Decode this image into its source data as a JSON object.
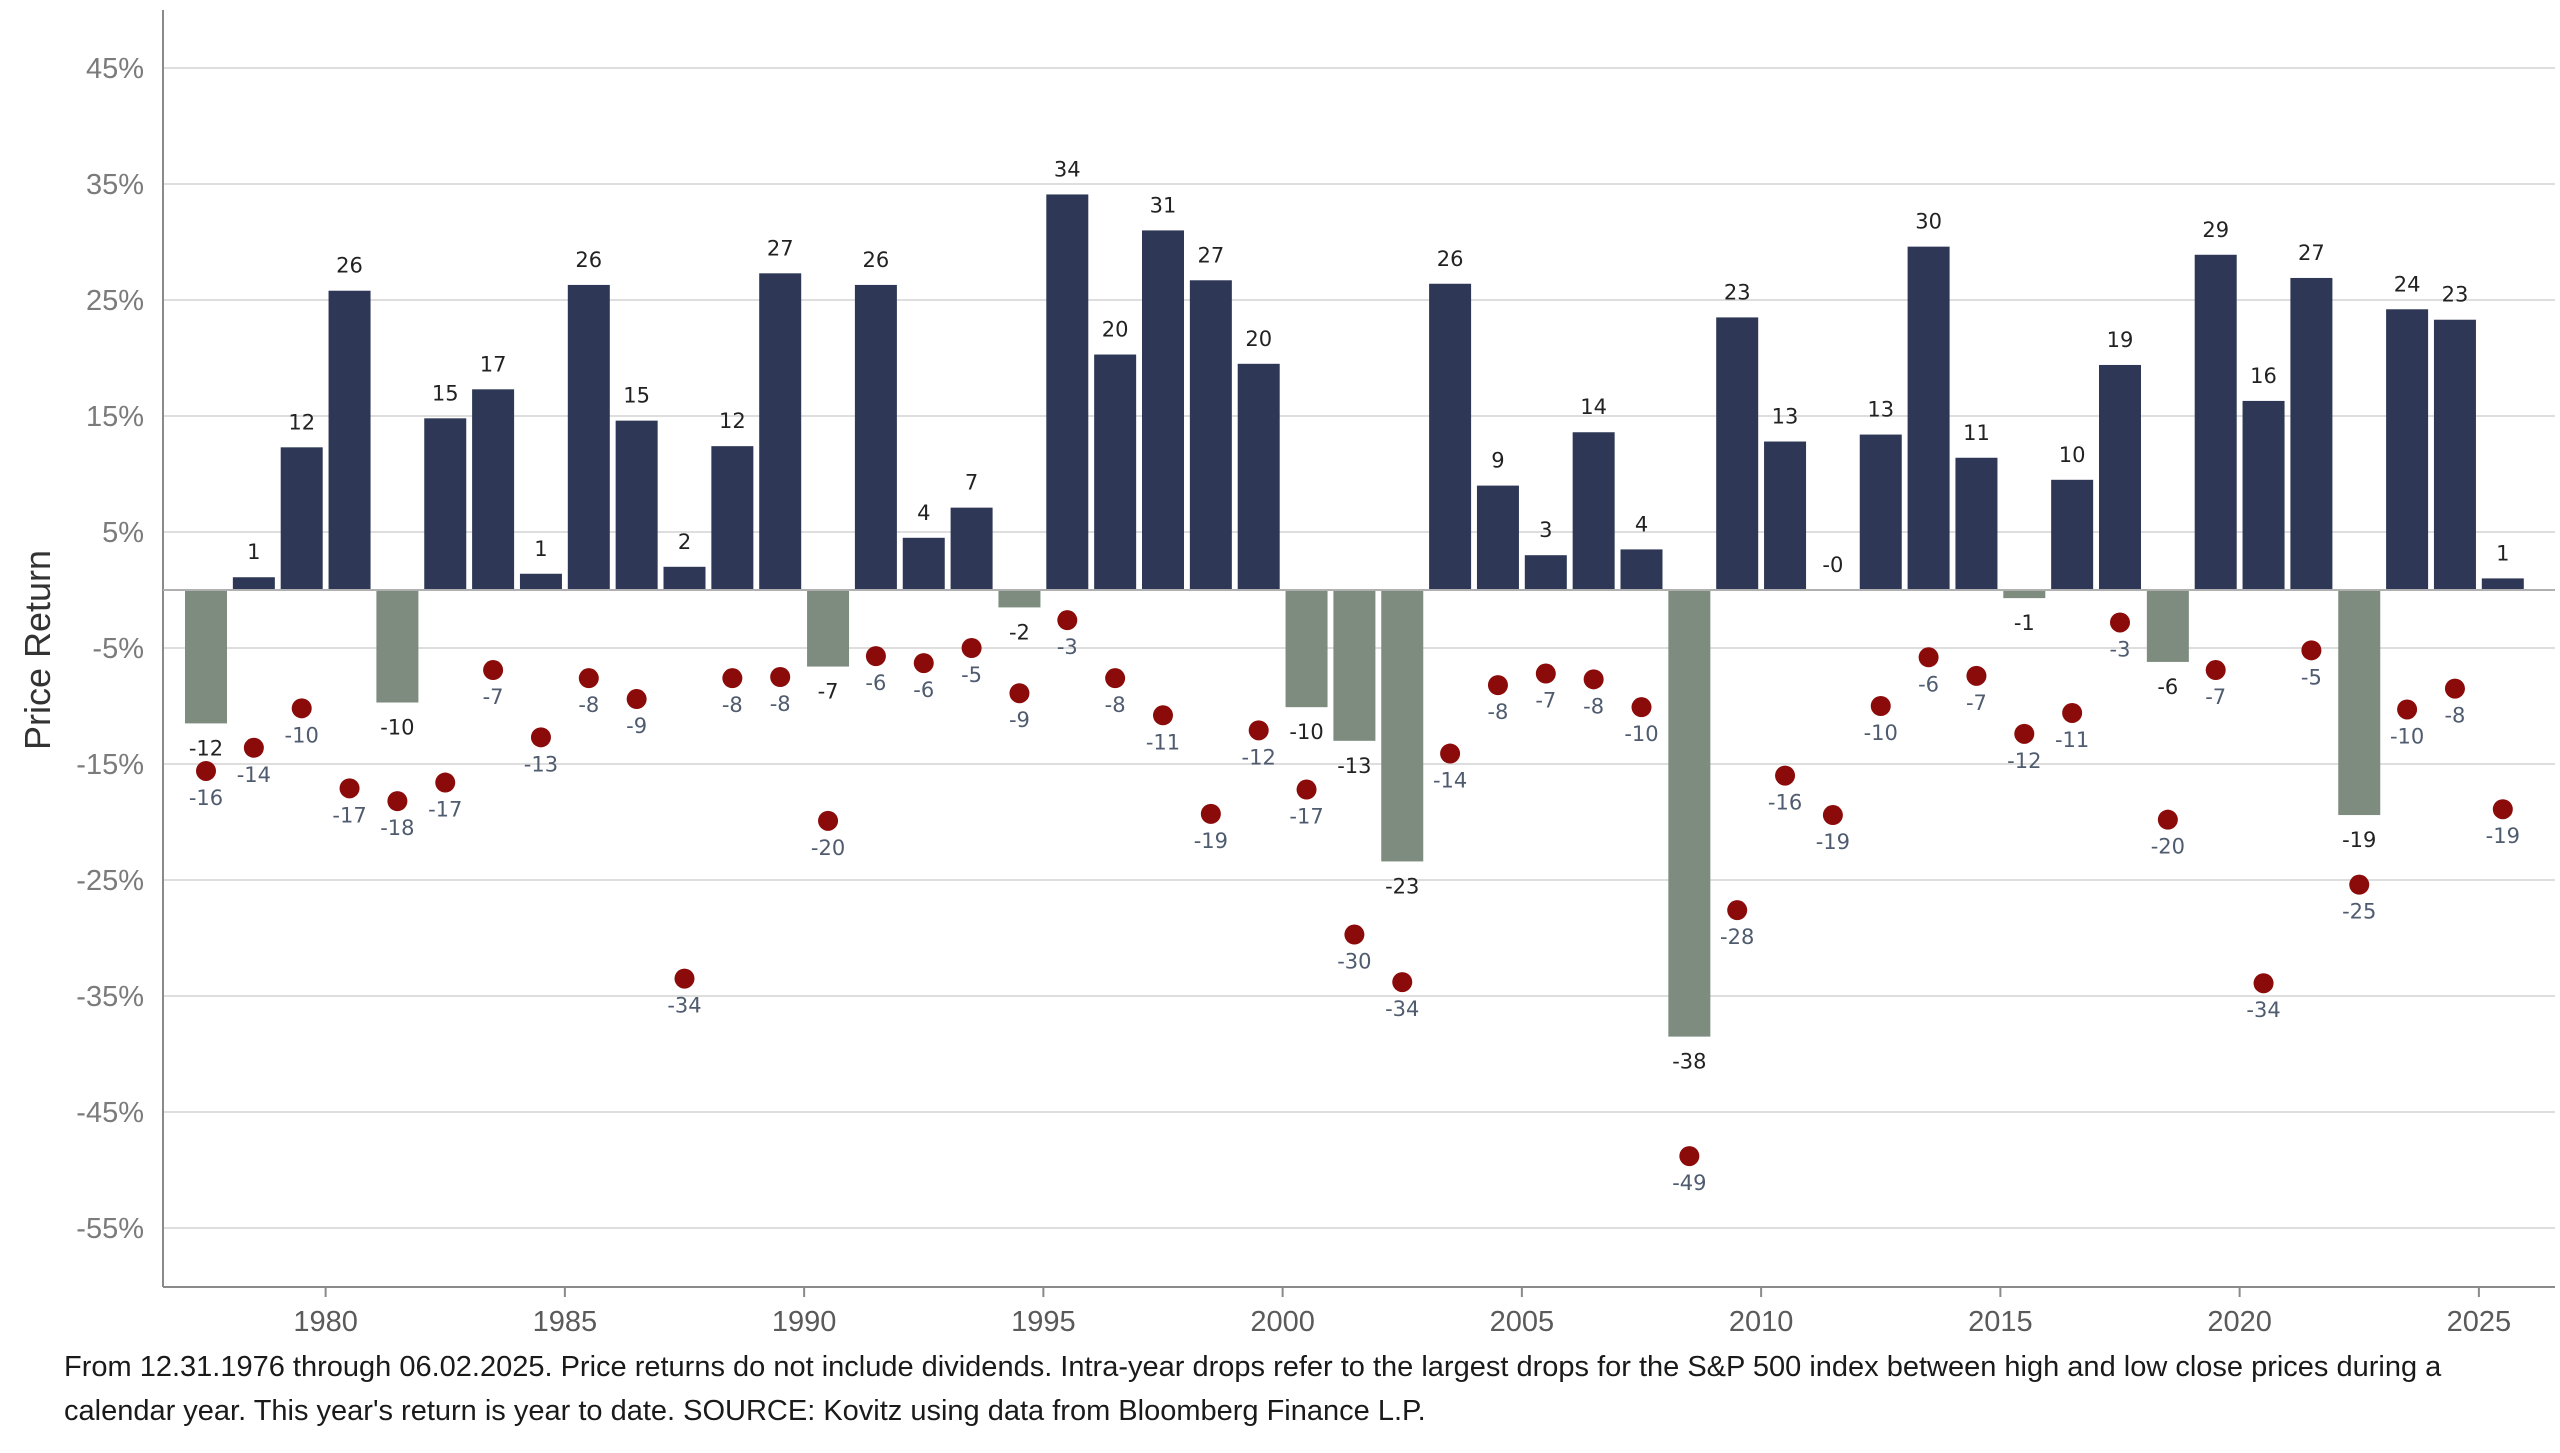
{
  "chart_data": {
    "type": "bar",
    "title": "",
    "ylabel": "Price Return",
    "xlabel": "",
    "ylim": [
      -60,
      50
    ],
    "y_ticks": [
      45,
      35,
      25,
      15,
      5,
      -5,
      -15,
      -25,
      -35,
      -45,
      -55
    ],
    "y_tick_labels": [
      "45%",
      "35%",
      "25%",
      "15%",
      "5%",
      "-5%",
      "-15%",
      "-25%",
      "-35%",
      "-45%",
      "-55%"
    ],
    "x_tick_years": [
      1980,
      1985,
      1990,
      1995,
      2000,
      2005,
      2010,
      2015,
      2020,
      2025
    ],
    "x_tick_labels": [
      "1980",
      "1985",
      "1990",
      "1995",
      "2000",
      "2005",
      "2010",
      "2015",
      "2020",
      "2025"
    ],
    "years": [
      1977,
      1978,
      1979,
      1980,
      1981,
      1982,
      1983,
      1984,
      1985,
      1986,
      1987,
      1988,
      1989,
      1990,
      1991,
      1992,
      1993,
      1994,
      1995,
      1996,
      1997,
      1998,
      1999,
      2000,
      2001,
      2002,
      2003,
      2004,
      2005,
      2006,
      2007,
      2008,
      2009,
      2010,
      2011,
      2012,
      2013,
      2014,
      2015,
      2016,
      2017,
      2018,
      2019,
      2020,
      2021,
      2022,
      2023,
      2024,
      2025
    ],
    "series": [
      {
        "name": "Calendar Year Price Return",
        "values": [
          -11.5,
          1.1,
          12.3,
          25.8,
          -9.7,
          14.8,
          17.3,
          1.4,
          26.3,
          14.6,
          2.0,
          12.4,
          27.3,
          -6.6,
          26.3,
          4.5,
          7.1,
          -1.5,
          34.1,
          20.3,
          31.0,
          26.7,
          19.5,
          -10.1,
          -13.0,
          -23.4,
          26.4,
          9.0,
          3.0,
          13.6,
          3.5,
          -38.5,
          23.5,
          12.8,
          -0.0,
          13.4,
          29.6,
          11.4,
          -0.7,
          9.5,
          19.4,
          -6.2,
          28.9,
          16.3,
          26.9,
          -19.4,
          24.2,
          23.3,
          1.0
        ],
        "labels": [
          "-12",
          "1",
          "12",
          "26",
          "-10",
          "15",
          "17",
          "1",
          "26",
          "15",
          "2",
          "12",
          "27",
          "-7",
          "26",
          "4",
          "7",
          "-2",
          "34",
          "20",
          "31",
          "27",
          "20",
          "-10",
          "-13",
          "-23",
          "26",
          "9",
          "3",
          "14",
          "4",
          "-38",
          "23",
          "13",
          "-0",
          "13",
          "30",
          "11",
          "-1",
          "10",
          "19",
          "-6",
          "29",
          "16",
          "27",
          "-19",
          "24",
          "23",
          "1"
        ]
      },
      {
        "name": "Intra-Year Drop",
        "values": [
          -15.6,
          -13.6,
          -10.2,
          -17.1,
          -18.2,
          -16.6,
          -6.9,
          -12.7,
          -7.6,
          -9.4,
          -33.5,
          -7.6,
          -7.5,
          -19.9,
          -5.7,
          -6.3,
          -5.0,
          -8.9,
          -2.6,
          -7.6,
          -10.8,
          -19.3,
          -12.1,
          -17.2,
          -29.7,
          -33.8,
          -14.1,
          -8.2,
          -7.2,
          -7.7,
          -10.1,
          -48.8,
          -27.6,
          -16.0,
          -19.4,
          -10.0,
          -5.8,
          -7.4,
          -12.4,
          -10.6,
          -2.8,
          -19.8,
          -6.9,
          -33.9,
          -5.2,
          -25.4,
          -10.3,
          -8.5,
          -18.9
        ],
        "labels": [
          "-16",
          "-14",
          "-10",
          "-17",
          "-18",
          "-17",
          "-7",
          "-13",
          "-8",
          "-9",
          "-34",
          "-8",
          "-8",
          "-20",
          "-6",
          "-6",
          "-5",
          "-9",
          "-3",
          "-8",
          "-11",
          "-19",
          "-12",
          "-17",
          "-30",
          "-34",
          "-14",
          "-8",
          "-7",
          "-8",
          "-10",
          "-49",
          "-28",
          "-16",
          "-19",
          "-10",
          "-6",
          "-7",
          "-12",
          "-11",
          "-3",
          "-20",
          "-7",
          "-34",
          "-5",
          "-25",
          "-10",
          "-8",
          "-19"
        ]
      }
    ],
    "colors": {
      "positive_bar": "#2e3856",
      "negative_bar": "#7d8c7f",
      "drop_dot": "#8b0b0b",
      "grid": "#dedede",
      "axis": "#8a8a8a"
    }
  },
  "footnote": "From 12.31.1976 through 06.02.2025. Price returns do not include dividends. Intra-year drops refer to the largest drops for the S&P 500 index between high and low close prices during a calendar year. This year's return is year to date. SOURCE: Kovitz using data from Bloomberg Finance L.P."
}
